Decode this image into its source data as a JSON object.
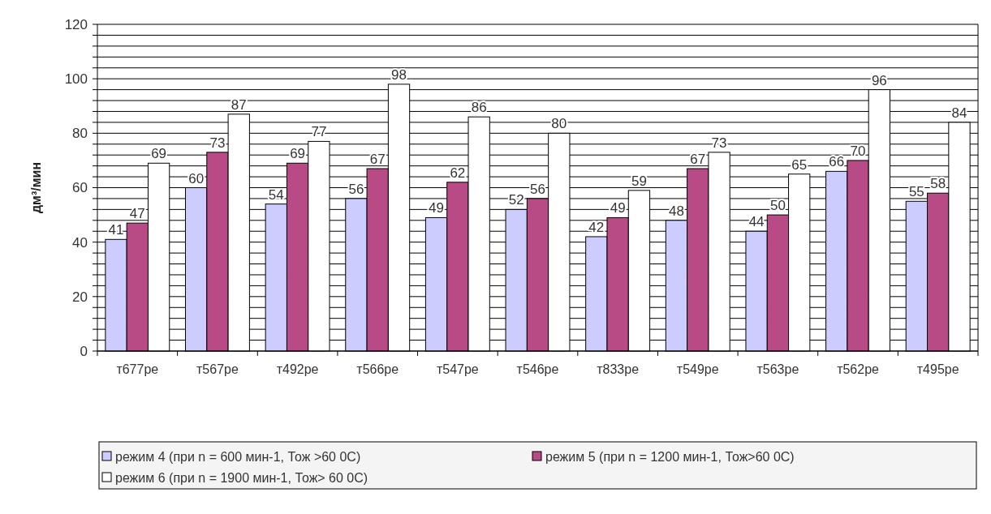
{
  "chart_data": {
    "type": "bar",
    "ylabel": "дм³/мин",
    "categories": [
      "т677ре",
      "т567ре",
      "т492ре",
      "т566ре",
      "т547ре",
      "т546ре",
      "т833ре",
      "т549ре",
      "т563ре",
      "т562ре",
      "т495ре"
    ],
    "series": [
      {
        "name": "режим 4 (при n = 600 мин-1, Тож >60 0С)",
        "color": "#ccccff",
        "values": [
          41,
          60,
          54,
          56,
          49,
          52,
          42,
          48,
          44,
          66,
          55
        ]
      },
      {
        "name": "режим 5 (при n = 1200 мин-1, Тож>60 0С)",
        "color": "#b84a86",
        "values": [
          47,
          73,
          69,
          67,
          62,
          56,
          49,
          67,
          50,
          70,
          58
        ]
      },
      {
        "name": "режим 6 (при n = 1900 мин-1, Тож> 60 0С)",
        "color": "#ffffff",
        "values": [
          69,
          87,
          77,
          98,
          86,
          80,
          59,
          73,
          65,
          96,
          84
        ]
      }
    ],
    "ylim": [
      0,
      120
    ],
    "yticks": [
      0,
      {
        "value": 4,
        "label": null
      },
      {
        "value": 8,
        "label": null
      },
      {
        "value": 12,
        "label": null
      },
      {
        "value": 16,
        "label": null
      },
      20,
      {
        "value": 24,
        "label": null
      },
      {
        "value": 28,
        "label": null
      },
      {
        "value": 32,
        "label": null
      },
      {
        "value": 36,
        "label": null
      },
      40,
      {
        "value": 44,
        "label": null
      },
      {
        "value": 48,
        "label": null
      },
      {
        "value": 52,
        "label": null
      },
      {
        "value": 56,
        "label": null
      },
      60,
      {
        "value": 64,
        "label": null
      },
      {
        "value": 68,
        "label": null
      },
      {
        "value": 72,
        "label": null
      },
      {
        "value": 76,
        "label": null
      },
      80,
      {
        "value": 84,
        "label": null
      },
      {
        "value": 88,
        "label": null
      },
      {
        "value": 92,
        "label": null
      },
      {
        "value": 96,
        "label": null
      },
      100,
      {
        "value": 104,
        "label": null
      },
      {
        "value": 108,
        "label": null
      },
      {
        "value": 112,
        "label": null
      },
      {
        "value": 116,
        "label": null
      },
      120
    ],
    "grid": "y",
    "legend": "bottom",
    "data_labels": true
  }
}
